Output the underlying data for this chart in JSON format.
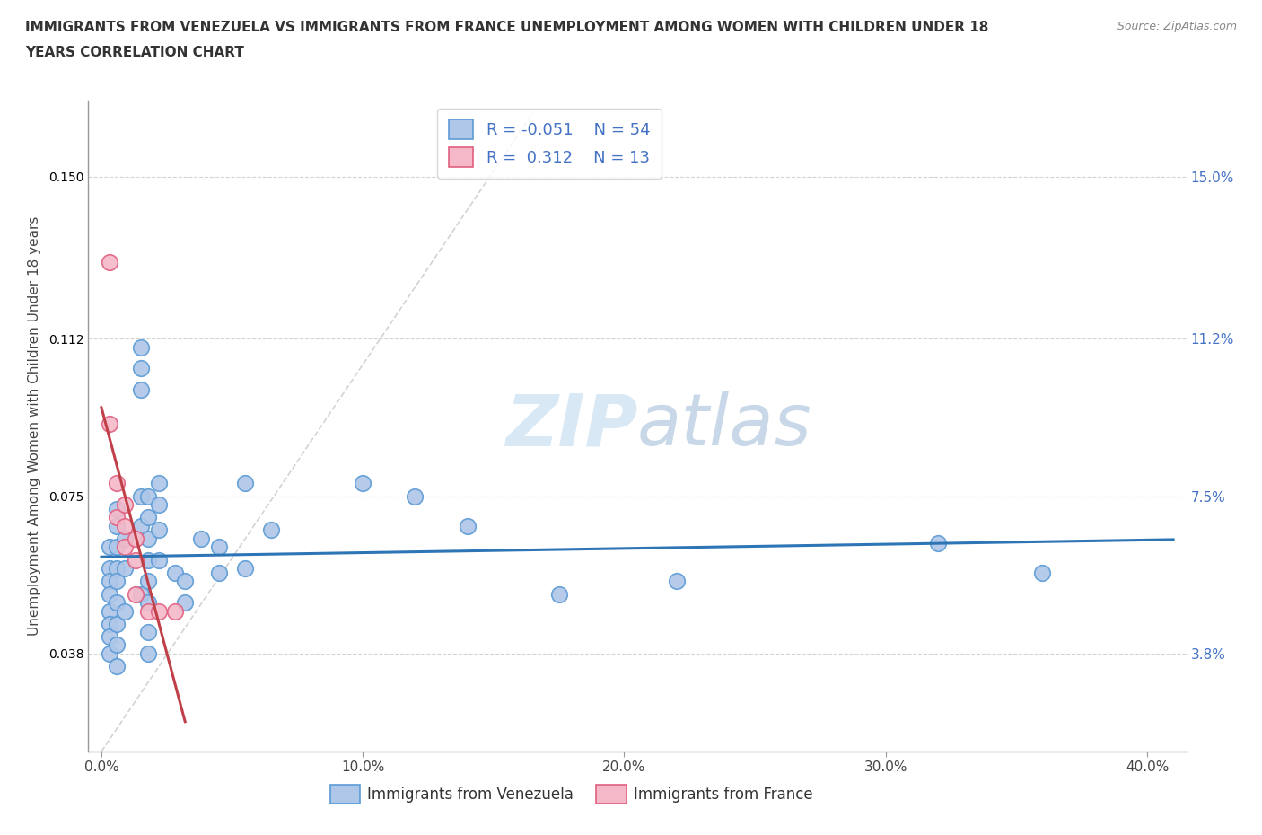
{
  "title_line1": "IMMIGRANTS FROM VENEZUELA VS IMMIGRANTS FROM FRANCE UNEMPLOYMENT AMONG WOMEN WITH CHILDREN UNDER 18",
  "title_line2": "YEARS CORRELATION CHART",
  "source": "Source: ZipAtlas.com",
  "ylabel_label": "Unemployment Among Women with Children Under 18 years",
  "x_tick_labels": [
    "0.0%",
    "10.0%",
    "20.0%",
    "30.0%",
    "40.0%"
  ],
  "x_tick_values": [
    0.0,
    0.1,
    0.2,
    0.3,
    0.4
  ],
  "y_tick_labels": [
    "3.8%",
    "7.5%",
    "11.2%",
    "15.0%"
  ],
  "y_tick_values": [
    0.038,
    0.075,
    0.112,
    0.15
  ],
  "xlim": [
    -0.005,
    0.415
  ],
  "ylim": [
    0.015,
    0.168
  ],
  "venezuela_color": "#aec6e8",
  "venezuela_edge": "#5b9bd5",
  "france_color": "#f4b8c8",
  "france_edge": "#e06080",
  "venezuela_R": -0.051,
  "venezuela_N": 54,
  "france_R": 0.312,
  "france_N": 13,
  "venezuela_line_color": "#2e75b6",
  "france_line_color": "#c0404a",
  "diagonal_color": "#c8c8c8",
  "legend_text_color": "#4472c4",
  "watermark_zip": "ZIP",
  "watermark_atlas": "atlas",
  "background_color": "#ffffff",
  "grid_color": "#c8c8c8",
  "venezuela_points": [
    [
      0.003,
      0.063
    ],
    [
      0.003,
      0.058
    ],
    [
      0.003,
      0.055
    ],
    [
      0.003,
      0.052
    ],
    [
      0.003,
      0.048
    ],
    [
      0.003,
      0.045
    ],
    [
      0.003,
      0.042
    ],
    [
      0.003,
      0.038
    ],
    [
      0.006,
      0.072
    ],
    [
      0.006,
      0.068
    ],
    [
      0.006,
      0.063
    ],
    [
      0.006,
      0.058
    ],
    [
      0.006,
      0.055
    ],
    [
      0.006,
      0.05
    ],
    [
      0.006,
      0.045
    ],
    [
      0.006,
      0.04
    ],
    [
      0.006,
      0.035
    ],
    [
      0.009,
      0.065
    ],
    [
      0.009,
      0.058
    ],
    [
      0.009,
      0.048
    ],
    [
      0.015,
      0.11
    ],
    [
      0.015,
      0.105
    ],
    [
      0.015,
      0.1
    ],
    [
      0.015,
      0.075
    ],
    [
      0.015,
      0.068
    ],
    [
      0.015,
      0.052
    ],
    [
      0.018,
      0.075
    ],
    [
      0.018,
      0.07
    ],
    [
      0.018,
      0.065
    ],
    [
      0.018,
      0.06
    ],
    [
      0.018,
      0.055
    ],
    [
      0.018,
      0.05
    ],
    [
      0.018,
      0.043
    ],
    [
      0.018,
      0.038
    ],
    [
      0.022,
      0.078
    ],
    [
      0.022,
      0.073
    ],
    [
      0.022,
      0.067
    ],
    [
      0.022,
      0.06
    ],
    [
      0.028,
      0.057
    ],
    [
      0.032,
      0.055
    ],
    [
      0.032,
      0.05
    ],
    [
      0.038,
      0.065
    ],
    [
      0.045,
      0.063
    ],
    [
      0.045,
      0.057
    ],
    [
      0.055,
      0.078
    ],
    [
      0.055,
      0.058
    ],
    [
      0.065,
      0.067
    ],
    [
      0.1,
      0.078
    ],
    [
      0.12,
      0.075
    ],
    [
      0.14,
      0.068
    ],
    [
      0.175,
      0.052
    ],
    [
      0.22,
      0.055
    ],
    [
      0.32,
      0.064
    ],
    [
      0.36,
      0.057
    ]
  ],
  "france_points": [
    [
      0.003,
      0.13
    ],
    [
      0.003,
      0.092
    ],
    [
      0.006,
      0.078
    ],
    [
      0.006,
      0.07
    ],
    [
      0.009,
      0.073
    ],
    [
      0.009,
      0.068
    ],
    [
      0.009,
      0.063
    ],
    [
      0.013,
      0.065
    ],
    [
      0.013,
      0.06
    ],
    [
      0.013,
      0.052
    ],
    [
      0.018,
      0.048
    ],
    [
      0.022,
      0.048
    ],
    [
      0.028,
      0.048
    ]
  ]
}
